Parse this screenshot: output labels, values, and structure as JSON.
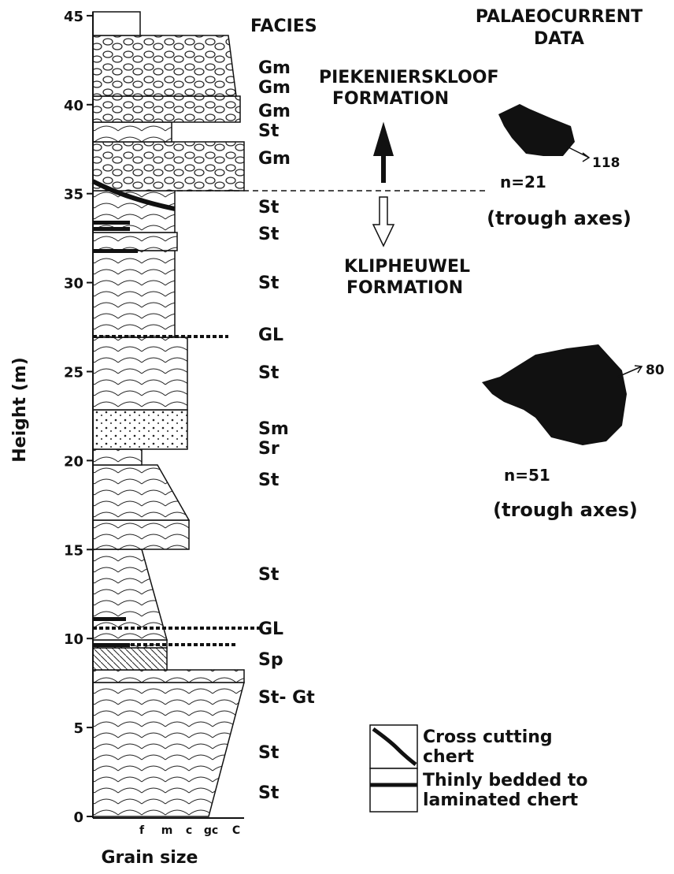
{
  "y_axis": {
    "label": "Height (m)",
    "ticks": [
      0,
      5,
      10,
      15,
      20,
      25,
      30,
      35,
      40,
      45
    ]
  },
  "x_axis": {
    "label": "Grain size",
    "ticks": [
      "f",
      "m",
      "c",
      "gc",
      "C"
    ]
  },
  "facies": {
    "title": "FACIES",
    "labels": [
      "Gm",
      "Gm",
      "Gm",
      "St",
      "Gm",
      "St",
      "St",
      "St",
      "GL",
      "St",
      "Sm",
      "Sr",
      "St",
      "St",
      "GL",
      "Sp",
      "St- Gt",
      "St",
      "St"
    ]
  },
  "palaeocurrent": {
    "title": [
      "PALAEOCURRENT",
      "DATA"
    ],
    "roses": [
      {
        "azimuth": "118",
        "n": "n=21",
        "note": "(trough axes)"
      },
      {
        "azimuth": "80",
        "n": "n=51",
        "note": "(trough axes)"
      }
    ]
  },
  "formations": {
    "upper": [
      "PIEKENIERSKLOOF",
      "FORMATION"
    ],
    "lower": [
      "KLIPHEUWEL",
      "FORMATION"
    ]
  },
  "legend": [
    {
      "lines": [
        "Cross cutting",
        "chert"
      ]
    },
    {
      "lines": [
        "Thinly bedded to",
        "laminated chert"
      ]
    }
  ]
}
